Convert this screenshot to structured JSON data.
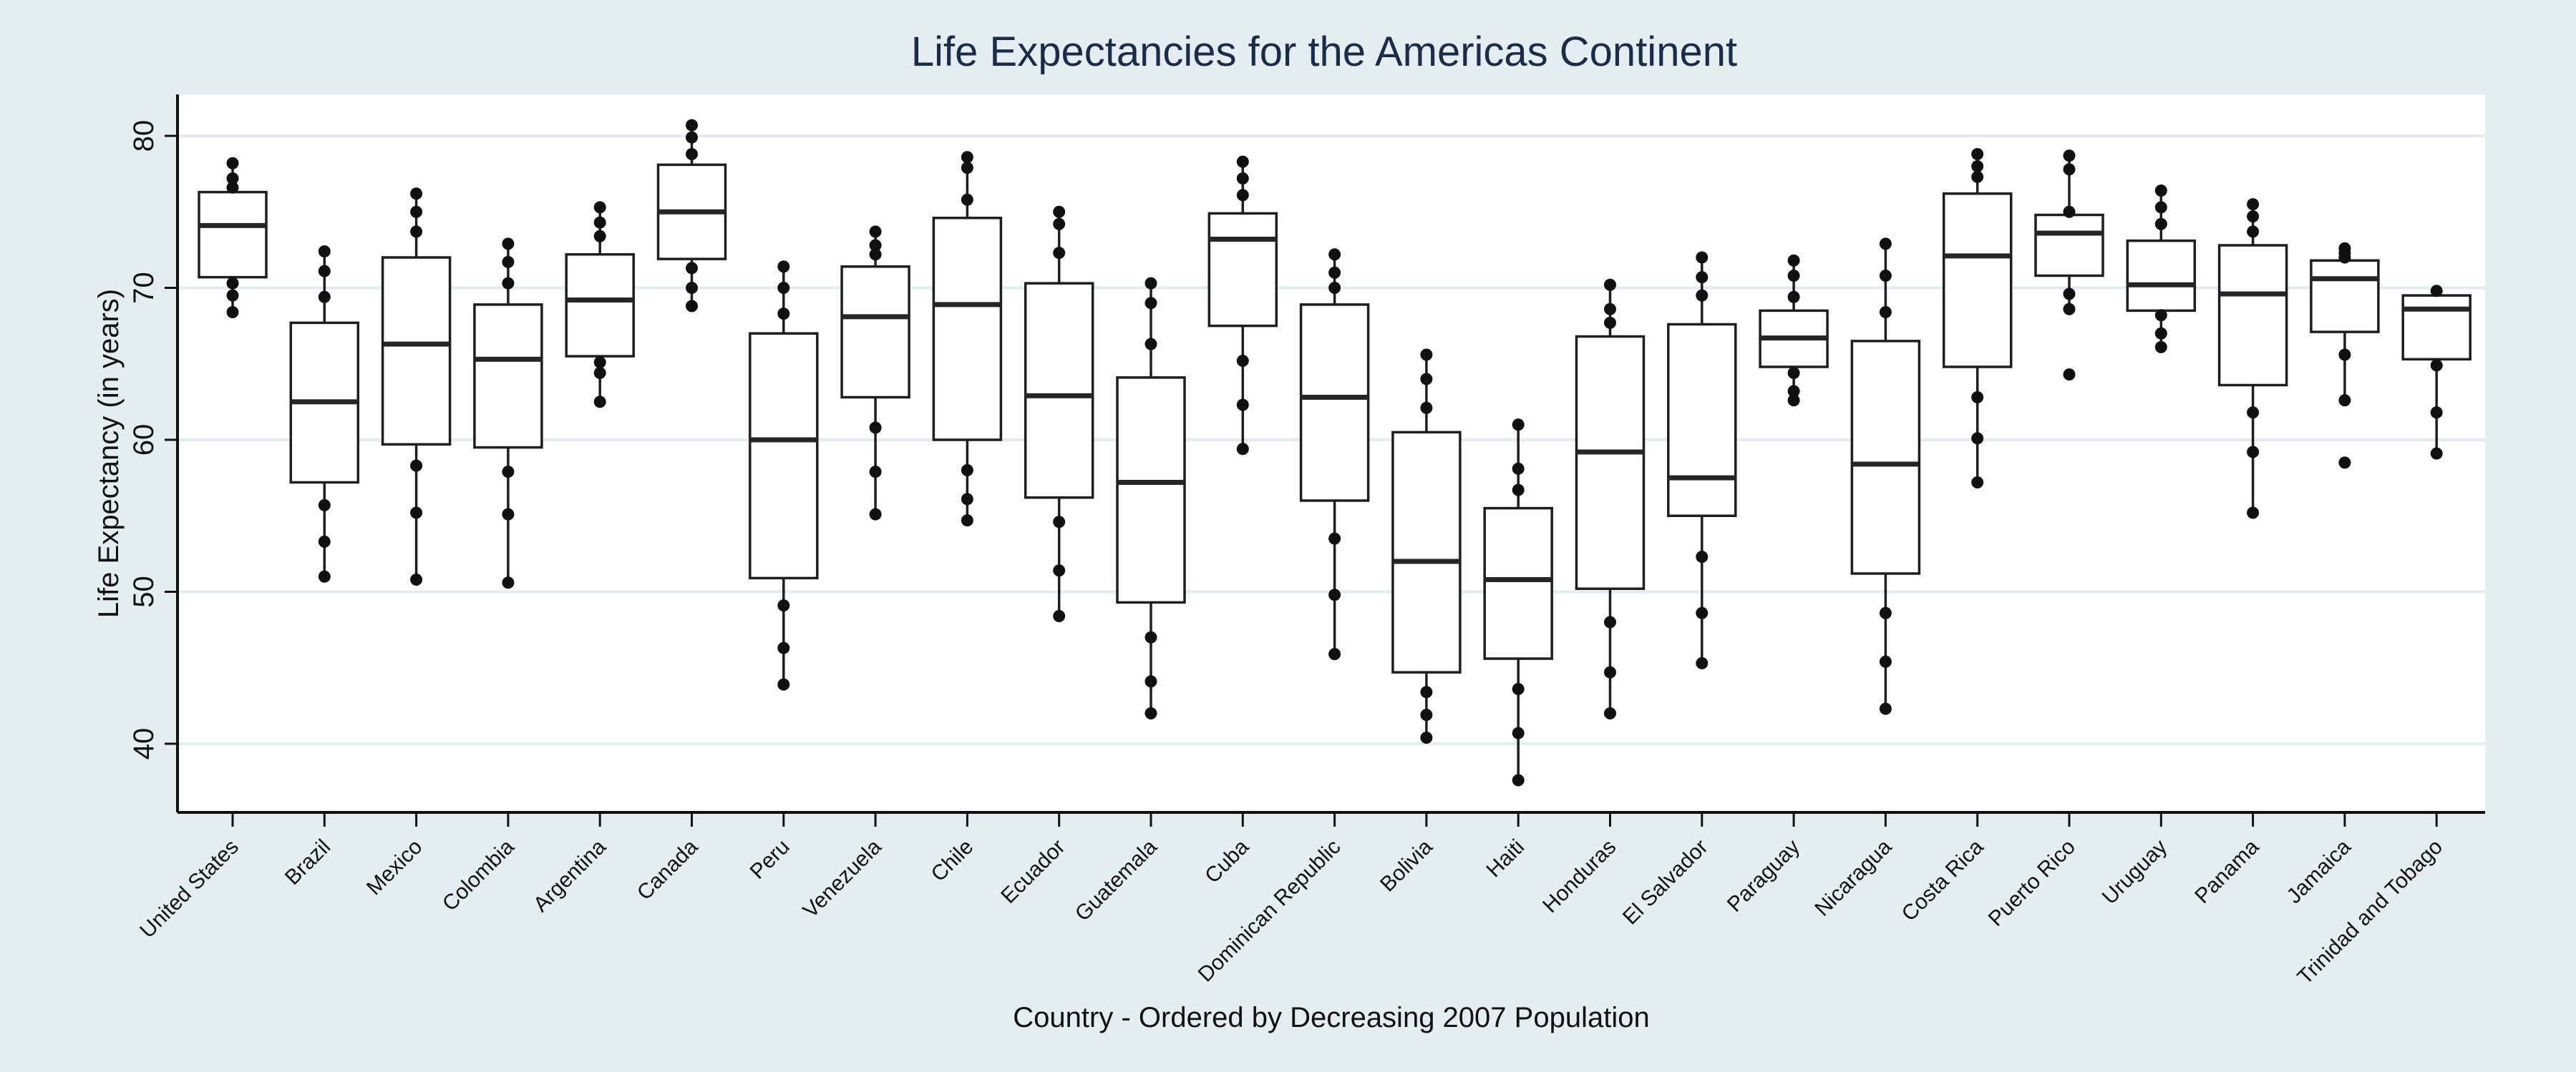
{
  "colors": {
    "background": "#e4eef0",
    "plot_background": "#ffffff",
    "gridline": "#e0ecee",
    "box_stroke": "#1e1e1e",
    "median": "#262626",
    "outlier": "#111111",
    "title": "#1b2c4b",
    "text": "#111111"
  },
  "chart_data": {
    "type": "box",
    "title": "Life Expectancies for the Americas Continent",
    "xlabel": "Country - Ordered by Decreasing 2007 Population",
    "ylabel": "Life Expectancy (in years)",
    "ylim": [
      35.5,
      82.7
    ],
    "yticks": [
      40,
      50,
      60,
      70,
      80
    ],
    "grid": true,
    "legend": "none",
    "categories": [
      "United States",
      "Brazil",
      "Mexico",
      "Colombia",
      "Argentina",
      "Canada",
      "Peru",
      "Venezuela",
      "Chile",
      "Ecuador",
      "Guatemala",
      "Cuba",
      "Dominican Republic",
      "Bolivia",
      "Haiti",
      "Honduras",
      "El Salvador",
      "Paraguay",
      "Nicaragua",
      "Costa Rica",
      "Puerto Rico",
      "Uruguay",
      "Panama",
      "Jamaica",
      "Trinidad and Tobago"
    ],
    "boxes": [
      {
        "q1": 70.7,
        "median": 74.1,
        "q3": 76.3,
        "whisker_low": 68.4,
        "whisker_high": 78.2,
        "points": [
          68.4,
          69.5,
          70.3,
          76.6,
          77.2,
          78.2
        ]
      },
      {
        "q1": 57.2,
        "median": 62.5,
        "q3": 67.7,
        "whisker_low": 51.0,
        "whisker_high": 72.4,
        "points": [
          51.0,
          53.3,
          55.7,
          69.4,
          71.1,
          72.4
        ]
      },
      {
        "q1": 59.7,
        "median": 66.3,
        "q3": 72.0,
        "whisker_low": 50.8,
        "whisker_high": 76.2,
        "points": [
          50.8,
          55.2,
          58.3,
          73.7,
          75.0,
          76.2
        ]
      },
      {
        "q1": 59.5,
        "median": 65.3,
        "q3": 68.9,
        "whisker_low": 50.6,
        "whisker_high": 72.9,
        "points": [
          50.6,
          55.1,
          57.9,
          70.3,
          71.7,
          72.9
        ]
      },
      {
        "q1": 65.5,
        "median": 69.2,
        "q3": 72.2,
        "whisker_low": 62.5,
        "whisker_high": 75.3,
        "points": [
          62.5,
          64.4,
          65.1,
          73.4,
          74.3,
          75.3
        ]
      },
      {
        "q1": 71.9,
        "median": 75.0,
        "q3": 78.1,
        "whisker_low": 68.8,
        "whisker_high": 80.7,
        "points": [
          68.8,
          70.0,
          71.3,
          78.8,
          79.9,
          80.7
        ]
      },
      {
        "q1": 50.9,
        "median": 60.0,
        "q3": 67.0,
        "whisker_low": 43.9,
        "whisker_high": 71.4,
        "points": [
          43.9,
          46.3,
          49.1,
          68.3,
          70.0,
          71.4
        ]
      },
      {
        "q1": 62.8,
        "median": 68.1,
        "q3": 71.4,
        "whisker_low": 55.1,
        "whisker_high": 73.7,
        "points": [
          55.1,
          57.9,
          60.8,
          72.2,
          72.8,
          73.7
        ]
      },
      {
        "q1": 60.0,
        "median": 68.9,
        "q3": 74.6,
        "whisker_low": 54.7,
        "whisker_high": 78.6,
        "points": [
          54.7,
          56.1,
          58.0,
          75.8,
          77.9,
          78.6
        ]
      },
      {
        "q1": 56.2,
        "median": 62.9,
        "q3": 70.3,
        "whisker_low": 48.4,
        "whisker_high": 75.0,
        "points": [
          48.4,
          51.4,
          54.6,
          72.3,
          74.2,
          75.0
        ]
      },
      {
        "q1": 49.3,
        "median": 57.2,
        "q3": 64.1,
        "whisker_low": 42.0,
        "whisker_high": 70.3,
        "points": [
          42.0,
          44.1,
          47.0,
          66.3,
          69.0,
          70.3
        ]
      },
      {
        "q1": 67.5,
        "median": 73.2,
        "q3": 74.9,
        "whisker_low": 59.4,
        "whisker_high": 78.3,
        "points": [
          59.4,
          62.3,
          65.2,
          76.1,
          77.2,
          78.3
        ]
      },
      {
        "q1": 56.0,
        "median": 62.8,
        "q3": 68.9,
        "whisker_low": 45.9,
        "whisker_high": 72.2,
        "points": [
          45.9,
          49.8,
          53.5,
          70.0,
          71.0,
          72.2
        ]
      },
      {
        "q1": 44.7,
        "median": 52.0,
        "q3": 60.5,
        "whisker_low": 40.4,
        "whisker_high": 65.6,
        "points": [
          40.4,
          41.9,
          43.4,
          62.1,
          64.0,
          65.6
        ]
      },
      {
        "q1": 45.6,
        "median": 50.8,
        "q3": 55.5,
        "whisker_low": 37.6,
        "whisker_high": 61.0,
        "points": [
          37.6,
          40.7,
          43.6,
          56.7,
          58.1,
          61.0
        ]
      },
      {
        "q1": 50.2,
        "median": 59.2,
        "q3": 66.8,
        "whisker_low": 42.0,
        "whisker_high": 70.2,
        "points": [
          42.0,
          44.7,
          48.0,
          67.7,
          68.6,
          70.2
        ]
      },
      {
        "q1": 55.0,
        "median": 57.5,
        "q3": 67.6,
        "whisker_low": 45.3,
        "whisker_high": 72.0,
        "points": [
          45.3,
          48.6,
          52.3,
          69.5,
          70.7,
          72.0
        ]
      },
      {
        "q1": 64.8,
        "median": 66.7,
        "q3": 68.5,
        "whisker_low": 62.6,
        "whisker_high": 71.8,
        "points": [
          62.6,
          63.2,
          64.4,
          69.4,
          70.8,
          71.8
        ]
      },
      {
        "q1": 51.2,
        "median": 58.4,
        "q3": 66.5,
        "whisker_low": 42.3,
        "whisker_high": 72.9,
        "points": [
          42.3,
          45.4,
          48.6,
          68.4,
          70.8,
          72.9
        ]
      },
      {
        "q1": 64.8,
        "median": 72.1,
        "q3": 76.2,
        "whisker_low": 57.2,
        "whisker_high": 78.8,
        "points": [
          57.2,
          60.1,
          62.8,
          77.3,
          78.0,
          78.8
        ]
      },
      {
        "q1": 70.8,
        "median": 73.6,
        "q3": 74.8,
        "whisker_low": 68.6,
        "whisker_high": 78.7,
        "points": [
          64.3,
          68.6,
          69.6,
          75.0,
          77.8,
          78.7
        ]
      },
      {
        "q1": 68.5,
        "median": 70.2,
        "q3": 73.1,
        "whisker_low": 66.1,
        "whisker_high": 76.4,
        "points": [
          66.1,
          67.0,
          68.2,
          74.2,
          75.3,
          76.4
        ]
      },
      {
        "q1": 63.6,
        "median": 69.6,
        "q3": 72.8,
        "whisker_low": 55.2,
        "whisker_high": 75.5,
        "points": [
          55.2,
          59.2,
          61.8,
          73.7,
          74.7,
          75.5
        ]
      },
      {
        "q1": 67.1,
        "median": 70.6,
        "q3": 71.8,
        "whisker_low": 62.6,
        "whisker_high": 72.6,
        "points": [
          58.5,
          62.6,
          65.6,
          72.0,
          72.3,
          72.6
        ]
      },
      {
        "q1": 65.3,
        "median": 68.6,
        "q3": 69.5,
        "whisker_low": 59.1,
        "whisker_high": 69.8,
        "points": [
          59.1,
          61.8,
          64.9,
          69.8
        ]
      }
    ]
  }
}
